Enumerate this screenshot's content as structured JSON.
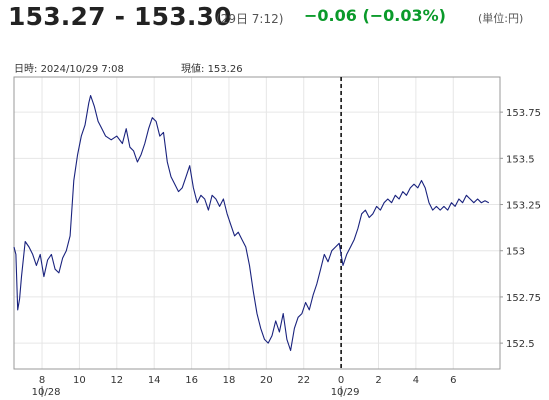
{
  "header": {
    "price_range": "153.27 - 153.30",
    "quote_time": "(29日 7:12)",
    "change": "−0.06 (−0.03%)",
    "unit": "(単位:円)"
  },
  "info": {
    "datetime_label": "日時:",
    "datetime_value": "2024/10/29  7:08",
    "current_label": "現値:",
    "current_value": "153.26"
  },
  "colors": {
    "line": "#1a237e",
    "change": "#0a9a2a",
    "divider": "#000000"
  },
  "chart_data": {
    "type": "line",
    "title": "",
    "xlabel": "",
    "ylabel": "",
    "x_unit": "hours since 10/28 06:30",
    "x_ticks": [
      {
        "x": 1.5,
        "label": "8"
      },
      {
        "x": 3.5,
        "label": "10"
      },
      {
        "x": 5.5,
        "label": "12"
      },
      {
        "x": 7.5,
        "label": "14"
      },
      {
        "x": 9.5,
        "label": "16"
      },
      {
        "x": 11.5,
        "label": "18"
      },
      {
        "x": 13.5,
        "label": "20"
      },
      {
        "x": 15.5,
        "label": "22"
      },
      {
        "x": 17.5,
        "label": "0"
      },
      {
        "x": 19.5,
        "label": "2"
      },
      {
        "x": 21.5,
        "label": "4"
      },
      {
        "x": 23.5,
        "label": "6"
      }
    ],
    "date_labels": [
      {
        "x": 1.5,
        "label": "10/28"
      },
      {
        "x": 17.5,
        "label": "10/29"
      }
    ],
    "divider_x": 17.5,
    "xlim": [
      0,
      26
    ],
    "y_ticks": [
      152.5,
      152.75,
      153,
      153.25,
      153.5,
      153.75
    ],
    "ylim": [
      152.36,
      153.94
    ],
    "grid": true,
    "series": [
      {
        "name": "",
        "color": "#1a237e",
        "points": [
          [
            0.0,
            153.02
          ],
          [
            0.1,
            152.98
          ],
          [
            0.2,
            152.68
          ],
          [
            0.3,
            152.74
          ],
          [
            0.4,
            152.86
          ],
          [
            0.6,
            153.05
          ],
          [
            0.8,
            153.02
          ],
          [
            1.0,
            152.98
          ],
          [
            1.2,
            152.92
          ],
          [
            1.4,
            152.98
          ],
          [
            1.6,
            152.86
          ],
          [
            1.8,
            152.95
          ],
          [
            2.0,
            152.98
          ],
          [
            2.2,
            152.9
          ],
          [
            2.4,
            152.88
          ],
          [
            2.6,
            152.96
          ],
          [
            2.8,
            153.0
          ],
          [
            3.0,
            153.08
          ],
          [
            3.2,
            153.38
          ],
          [
            3.4,
            153.52
          ],
          [
            3.6,
            153.62
          ],
          [
            3.8,
            153.68
          ],
          [
            4.0,
            153.8
          ],
          [
            4.1,
            153.84
          ],
          [
            4.3,
            153.78
          ],
          [
            4.5,
            153.7
          ],
          [
            4.7,
            153.66
          ],
          [
            4.9,
            153.62
          ],
          [
            5.2,
            153.6
          ],
          [
            5.5,
            153.62
          ],
          [
            5.8,
            153.58
          ],
          [
            6.0,
            153.66
          ],
          [
            6.2,
            153.56
          ],
          [
            6.4,
            153.54
          ],
          [
            6.6,
            153.48
          ],
          [
            6.8,
            153.52
          ],
          [
            7.0,
            153.58
          ],
          [
            7.2,
            153.66
          ],
          [
            7.4,
            153.72
          ],
          [
            7.6,
            153.7
          ],
          [
            7.8,
            153.62
          ],
          [
            8.0,
            153.64
          ],
          [
            8.2,
            153.48
          ],
          [
            8.4,
            153.4
          ],
          [
            8.6,
            153.36
          ],
          [
            8.8,
            153.32
          ],
          [
            9.0,
            153.34
          ],
          [
            9.2,
            153.4
          ],
          [
            9.4,
            153.46
          ],
          [
            9.6,
            153.34
          ],
          [
            9.8,
            153.26
          ],
          [
            10.0,
            153.3
          ],
          [
            10.2,
            153.28
          ],
          [
            10.4,
            153.22
          ],
          [
            10.6,
            153.3
          ],
          [
            10.8,
            153.28
          ],
          [
            11.0,
            153.24
          ],
          [
            11.2,
            153.28
          ],
          [
            11.4,
            153.2
          ],
          [
            11.6,
            153.14
          ],
          [
            11.8,
            153.08
          ],
          [
            12.0,
            153.1
          ],
          [
            12.2,
            153.06
          ],
          [
            12.4,
            153.02
          ],
          [
            12.6,
            152.92
          ],
          [
            12.8,
            152.78
          ],
          [
            13.0,
            152.66
          ],
          [
            13.2,
            152.58
          ],
          [
            13.4,
            152.52
          ],
          [
            13.6,
            152.5
          ],
          [
            13.8,
            152.54
          ],
          [
            14.0,
            152.62
          ],
          [
            14.2,
            152.56
          ],
          [
            14.4,
            152.66
          ],
          [
            14.6,
            152.52
          ],
          [
            14.8,
            152.46
          ],
          [
            15.0,
            152.58
          ],
          [
            15.2,
            152.64
          ],
          [
            15.4,
            152.66
          ],
          [
            15.6,
            152.72
          ],
          [
            15.8,
            152.68
          ],
          [
            16.0,
            152.76
          ],
          [
            16.2,
            152.82
          ],
          [
            16.4,
            152.9
          ],
          [
            16.6,
            152.98
          ],
          [
            16.8,
            152.94
          ],
          [
            17.0,
            153.0
          ],
          [
            17.2,
            153.02
          ],
          [
            17.4,
            153.04
          ],
          [
            17.6,
            152.92
          ],
          [
            17.8,
            152.98
          ],
          [
            18.0,
            153.02
          ],
          [
            18.2,
            153.06
          ],
          [
            18.4,
            153.12
          ],
          [
            18.6,
            153.2
          ],
          [
            18.8,
            153.22
          ],
          [
            19.0,
            153.18
          ],
          [
            19.2,
            153.2
          ],
          [
            19.4,
            153.24
          ],
          [
            19.6,
            153.22
          ],
          [
            19.8,
            153.26
          ],
          [
            20.0,
            153.28
          ],
          [
            20.2,
            153.26
          ],
          [
            20.4,
            153.3
          ],
          [
            20.6,
            153.28
          ],
          [
            20.8,
            153.32
          ],
          [
            21.0,
            153.3
          ],
          [
            21.2,
            153.34
          ],
          [
            21.4,
            153.36
          ],
          [
            21.6,
            153.34
          ],
          [
            21.8,
            153.38
          ],
          [
            22.0,
            153.34
          ],
          [
            22.2,
            153.26
          ],
          [
            22.4,
            153.22
          ],
          [
            22.6,
            153.24
          ],
          [
            22.8,
            153.22
          ],
          [
            23.0,
            153.24
          ],
          [
            23.2,
            153.22
          ],
          [
            23.4,
            153.26
          ],
          [
            23.6,
            153.24
          ],
          [
            23.8,
            153.28
          ],
          [
            24.0,
            153.26
          ],
          [
            24.2,
            153.3
          ],
          [
            24.4,
            153.28
          ],
          [
            24.6,
            153.26
          ],
          [
            24.8,
            153.28
          ],
          [
            25.0,
            153.26
          ],
          [
            25.2,
            153.27
          ],
          [
            25.4,
            153.26
          ]
        ]
      }
    ]
  }
}
